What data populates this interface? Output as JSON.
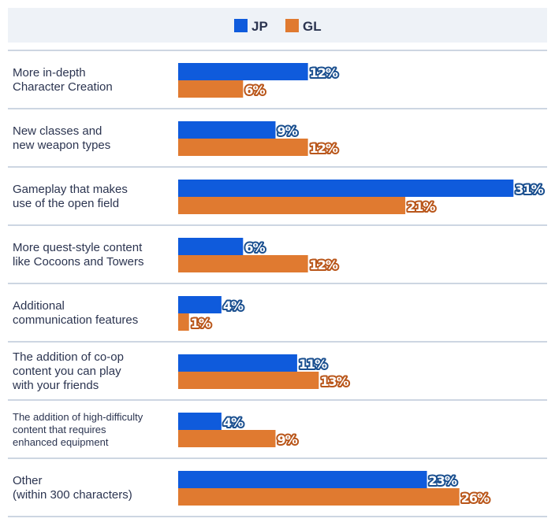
{
  "chart_data": {
    "type": "bar",
    "orientation": "horizontal",
    "legend_position": "top",
    "categories": [
      [
        "More in-depth",
        "Character Creation"
      ],
      [
        "New classes and",
        "new weapon types"
      ],
      [
        "Gameplay that makes",
        "use of the open field"
      ],
      [
        "More quest-style content",
        "like Cocoons and Towers"
      ],
      [
        "Additional",
        "communication features"
      ],
      [
        "The addition of co-op",
        "content you can play",
        "with your friends"
      ],
      [
        "The addition of high-difficulty",
        "content that requires",
        "enhanced equipment"
      ],
      [
        "Other",
        "(within 300 characters)"
      ]
    ],
    "series": [
      {
        "name": "JP",
        "color": "#0f5bdc",
        "label_outline": "#1a4f8f",
        "values": [
          12,
          9,
          31,
          6,
          4,
          11,
          4,
          23
        ]
      },
      {
        "name": "GL",
        "color": "#e07a30",
        "label_outline": "#b9561a",
        "values": [
          6,
          12,
          21,
          12,
          1,
          13,
          9,
          26
        ]
      }
    ],
    "value_suffix": "%",
    "grid": false,
    "legend_background": "#eef2f7",
    "separator_color": "#cdd6e2"
  }
}
